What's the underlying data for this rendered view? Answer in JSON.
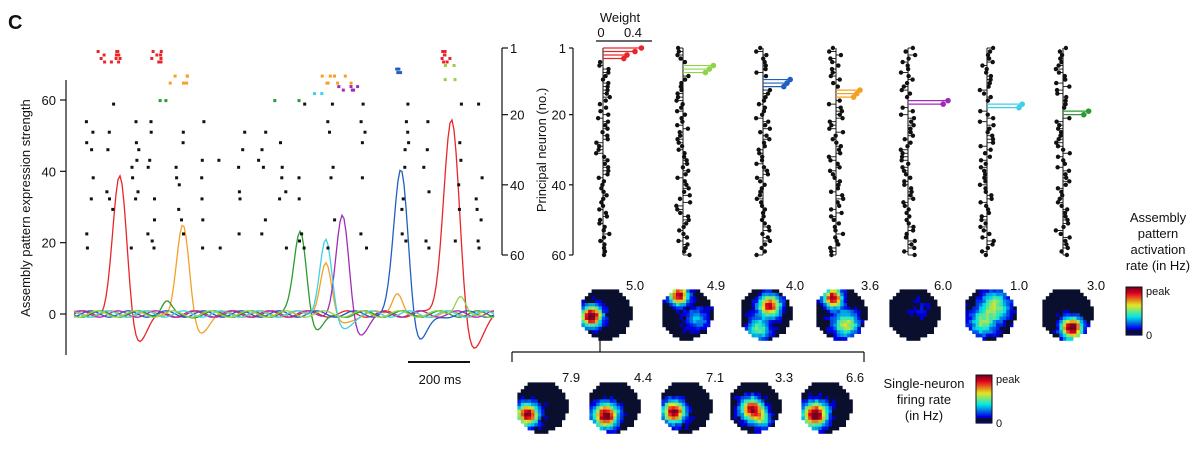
{
  "panel_label": "C",
  "colorbar_peak_label": "peak",
  "colorbar_zero_label": "0",
  "chart_data": [
    {
      "type": "line",
      "title": "",
      "ylabel": "Assembly pattern expression strength",
      "y_ticks": [
        "0",
        "20",
        "40",
        "60"
      ],
      "ylim": [
        -10,
        70
      ],
      "scale_bar_label": "200 ms",
      "series": [
        {
          "name": "",
          "color": "#e8262a",
          "peaks": [
            [
              0.11,
              43
            ],
            [
              0.9,
              63
            ]
          ]
        },
        {
          "name": "",
          "color": "#f5a024",
          "peaks": [
            [
              0.26,
              27
            ],
            [
              0.6,
              16
            ],
            [
              0.77,
              7
            ]
          ]
        },
        {
          "name": "",
          "color": "#2b9a2f",
          "peaks": [
            [
              0.22,
              4
            ],
            [
              0.54,
              26
            ]
          ]
        },
        {
          "name": "",
          "color": "#1f5fbf",
          "peaks": [
            [
              0.78,
              46
            ]
          ]
        },
        {
          "name": "",
          "color": "#a12bb8",
          "peaks": [
            [
              0.64,
              30
            ]
          ]
        },
        {
          "name": "",
          "color": "#3ed0e6",
          "peaks": [
            [
              0.6,
              23
            ]
          ]
        },
        {
          "name": "",
          "color": "#8fd448",
          "peaks": [
            [
              0.92,
              6
            ]
          ]
        }
      ]
    },
    {
      "type": "scatter",
      "title": "",
      "ylabel": "Principal neuron (no.)",
      "y_ticks": [
        "1",
        "20",
        "40",
        "60"
      ],
      "ylim": [
        1,
        60
      ],
      "raster_groups": [
        {
          "color": "#e8262a",
          "neurons": [
            2,
            3,
            4,
            5
          ],
          "times": [
            0.06,
            0.09,
            0.1,
            0.19,
            0.2,
            0.89,
            0.9
          ]
        },
        {
          "color": "#f5a024",
          "neurons": [
            9,
            11
          ],
          "times": [
            0.23,
            0.26,
            0.27,
            0.6,
            0.61,
            0.63,
            0.66
          ]
        },
        {
          "color": "#2b9a2f",
          "neurons": [
            16
          ],
          "times": [
            0.21,
            0.22,
            0.48,
            0.54
          ]
        },
        {
          "color": "#1f5fbf",
          "neurons": [
            7,
            8
          ],
          "times": [
            0.78,
            0.79
          ]
        },
        {
          "color": "#a12bb8",
          "neurons": [
            12,
            13
          ],
          "times": [
            0.64,
            0.67,
            0.68
          ]
        },
        {
          "color": "#3ed0e6",
          "neurons": [
            14
          ],
          "times": [
            0.58,
            0.6
          ]
        },
        {
          "color": "#8fd448",
          "neurons": [
            6,
            10
          ],
          "times": [
            0.9,
            0.92
          ]
        },
        {
          "color": "#111111",
          "neurons": [
            17,
            22,
            25,
            28,
            30,
            33,
            35,
            38,
            40,
            42,
            44,
            47,
            50,
            54,
            56,
            58
          ],
          "times": [
            0.03,
            0.08,
            0.14,
            0.18,
            0.25,
            0.3,
            0.35,
            0.4,
            0.45,
            0.5,
            0.55,
            0.62,
            0.7,
            0.8,
            0.85,
            0.93,
            0.98
          ]
        }
      ]
    },
    {
      "type": "scatter",
      "title": "Weight",
      "x_ticks": [
        "0",
        "0.4"
      ],
      "ylabel": "Principal neuron (no.)",
      "y_ticks": [
        "1",
        "20",
        "40",
        "60"
      ],
      "ylim": [
        1,
        60
      ],
      "assemblies": [
        {
          "color": "#e8262a",
          "members": [
            [
              1,
              0.48
            ],
            [
              2,
              0.4
            ],
            [
              3,
              0.3
            ],
            [
              4,
              0.26
            ]
          ]
        },
        {
          "color": "#8fd448",
          "members": [
            [
              6,
              0.38
            ],
            [
              7,
              0.33
            ],
            [
              8,
              0.28
            ]
          ]
        },
        {
          "color": "#1f5fbf",
          "members": [
            [
              10,
              0.34
            ],
            [
              11,
              0.3
            ],
            [
              12,
              0.26
            ]
          ]
        },
        {
          "color": "#f5a024",
          "members": [
            [
              13,
              0.3
            ],
            [
              14,
              0.26
            ],
            [
              15,
              0.22
            ]
          ]
        },
        {
          "color": "#a12bb8",
          "members": [
            [
              16,
              0.5
            ],
            [
              17,
              0.44
            ]
          ]
        },
        {
          "color": "#3ed0e6",
          "members": [
            [
              17,
              0.44
            ],
            [
              18,
              0.4
            ]
          ]
        },
        {
          "color": "#2b9a2f",
          "members": [
            [
              19,
              0.32
            ],
            [
              20,
              0.26
            ]
          ]
        }
      ]
    },
    {
      "type": "heatmap",
      "ylabel": "Assembly pattern activation rate (in Hz)",
      "colorbar_label": "Assembly pattern activation rate (in Hz)",
      "rates": [
        "5.0",
        "4.9",
        "4.0",
        "3.6",
        "6.0",
        "1.0",
        "3.0"
      ]
    },
    {
      "type": "heatmap",
      "colorbar_label": "Single-neuron firing rate (in Hz)",
      "rates": [
        "7.9",
        "4.4",
        "7.1",
        "3.3",
        "6.6"
      ]
    }
  ]
}
